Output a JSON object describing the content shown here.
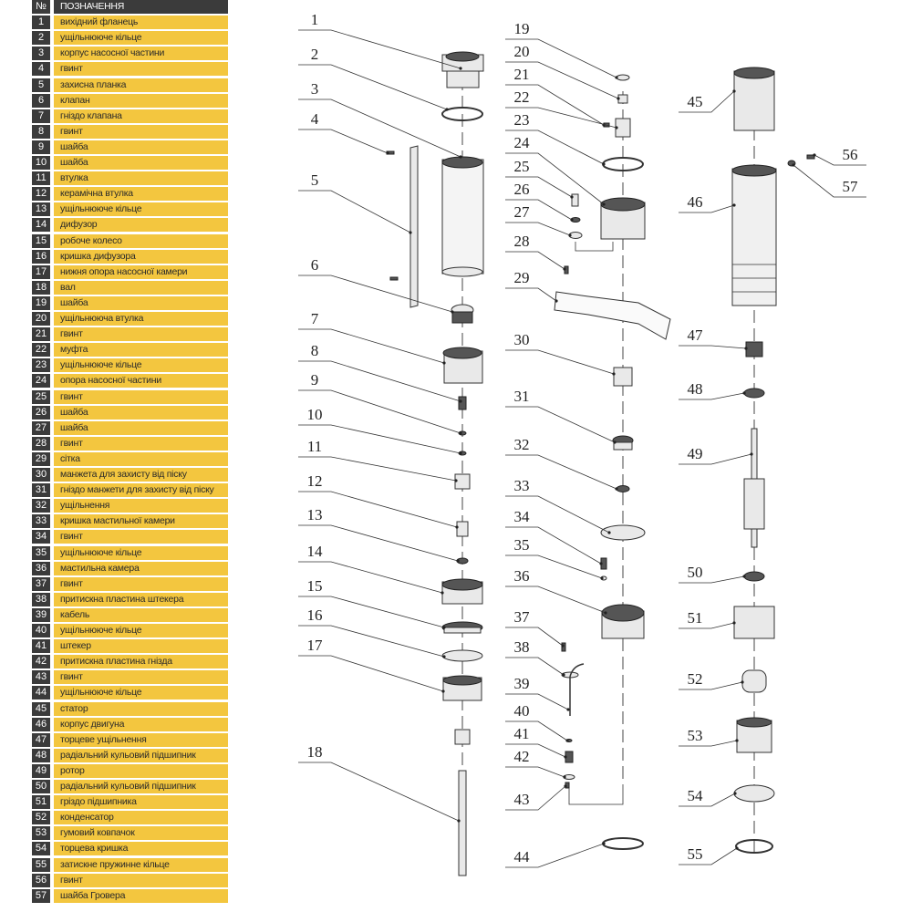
{
  "legend": {
    "header": {
      "num": "№",
      "name": "ПОЗНАЧЕННЯ"
    },
    "rows": [
      {
        "num": "1",
        "name": "вихідний фланець"
      },
      {
        "num": "2",
        "name": "ущільнююче кільце"
      },
      {
        "num": "3",
        "name": "корпус насосної частини"
      },
      {
        "num": "4",
        "name": "гвинт"
      },
      {
        "num": "5",
        "name": "захисна планка"
      },
      {
        "num": "6",
        "name": "клапан"
      },
      {
        "num": "7",
        "name": "гніздо клапана"
      },
      {
        "num": "8",
        "name": "гвинт"
      },
      {
        "num": "9",
        "name": "шайба"
      },
      {
        "num": "10",
        "name": "шайба"
      },
      {
        "num": "11",
        "name": "втулка"
      },
      {
        "num": "12",
        "name": "керамічна втулка"
      },
      {
        "num": "13",
        "name": "ущільнююче кільце"
      },
      {
        "num": "14",
        "name": "дифузор"
      },
      {
        "num": "15",
        "name": "робоче колесо"
      },
      {
        "num": "16",
        "name": "кришка дифузора"
      },
      {
        "num": "17",
        "name": "нижня опора насосної камери"
      },
      {
        "num": "18",
        "name": "вал"
      },
      {
        "num": "19",
        "name": "шайба"
      },
      {
        "num": "20",
        "name": "ущільнююча втулка"
      },
      {
        "num": "21",
        "name": "гвинт"
      },
      {
        "num": "22",
        "name": "муфта"
      },
      {
        "num": "23",
        "name": "ущільнююче кільце"
      },
      {
        "num": "24",
        "name": "опора насосної частини"
      },
      {
        "num": "25",
        "name": "гвинт"
      },
      {
        "num": "26",
        "name": "шайба"
      },
      {
        "num": "27",
        "name": "шайба"
      },
      {
        "num": "28",
        "name": "гвинт"
      },
      {
        "num": "29",
        "name": "сітка"
      },
      {
        "num": "30",
        "name": "манжета для захисту від піску"
      },
      {
        "num": "31",
        "name": "гніздо манжети для захисту від піску"
      },
      {
        "num": "32",
        "name": "ущільнення"
      },
      {
        "num": "33",
        "name": "кришка мастильної камери"
      },
      {
        "num": "34",
        "name": "гвинт"
      },
      {
        "num": "35",
        "name": "ущільнююче кільце"
      },
      {
        "num": "36",
        "name": "мастильна камера"
      },
      {
        "num": "37",
        "name": "гвинт"
      },
      {
        "num": "38",
        "name": "притискна пластина штекера"
      },
      {
        "num": "39",
        "name": "кабель"
      },
      {
        "num": "40",
        "name": "ущільнююче кільце"
      },
      {
        "num": "41",
        "name": "штекер"
      },
      {
        "num": "42",
        "name": "притискна пластина гнізда"
      },
      {
        "num": "43",
        "name": "гвинт"
      },
      {
        "num": "44",
        "name": "ущільнююче кільце"
      },
      {
        "num": "45",
        "name": "статор"
      },
      {
        "num": "46",
        "name": "корпус двигуна"
      },
      {
        "num": "47",
        "name": "торцеве ущільнення"
      },
      {
        "num": "48",
        "name": "радіальний кульовий підшипник"
      },
      {
        "num": "49",
        "name": "ротор"
      },
      {
        "num": "50",
        "name": "радіальний кульовий підшипник"
      },
      {
        "num": "51",
        "name": "гріздо підшипника"
      },
      {
        "num": "52",
        "name": "конденсатор"
      },
      {
        "num": "53",
        "name": "гумовий ковпачок"
      },
      {
        "num": "54",
        "name": "торцева кришка"
      },
      {
        "num": "55",
        "name": "затискне пружинне кільце"
      },
      {
        "num": "56",
        "name": "гвинт"
      },
      {
        "num": "57",
        "name": "шайба Гровера"
      }
    ]
  },
  "callouts": [
    "1",
    "2",
    "3",
    "4",
    "5",
    "6",
    "7",
    "8",
    "9",
    "10",
    "11",
    "12",
    "13",
    "14",
    "15",
    "16",
    "17",
    "18",
    "19",
    "20",
    "21",
    "22",
    "23",
    "24",
    "25",
    "26",
    "27",
    "28",
    "29",
    "30",
    "31",
    "32",
    "33",
    "34",
    "35",
    "36",
    "37",
    "38",
    "39",
    "40",
    "41",
    "42",
    "43",
    "44",
    "45",
    "46",
    "47",
    "48",
    "49",
    "50",
    "51",
    "52",
    "53",
    "54",
    "55",
    "56",
    "57"
  ],
  "colors": {
    "legend_fill": "#f3c63f",
    "legend_number_fill": "#3b3b3b"
  }
}
